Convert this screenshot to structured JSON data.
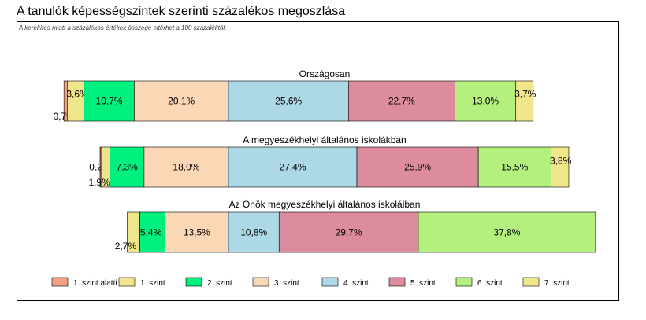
{
  "title": "A tanulók képességszintek szerinti százalékos megoszlása",
  "note": "A kerekítés miatt a százalékos értékek összege eltérhet a 100 százaléktól.",
  "colors": {
    "below1": "#F4A183",
    "level1": "#EFE58A",
    "level2": "#00F07F",
    "level3": "#FCD7B6",
    "level4": "#ADD8E6",
    "level5": "#DC8C9C",
    "level6": "#B3F07D",
    "level7": "#F2E68C"
  },
  "chart_data": {
    "type": "bar",
    "orientation": "horizontal",
    "stacked": true,
    "series": [
      {
        "name": "1. szint alatti",
        "color": "#F4A183",
        "values": [
          0.7,
          0.2,
          0
        ]
      },
      {
        "name": "1. szint",
        "color": "#EFE58A",
        "values": [
          3.6,
          1.9,
          2.7
        ]
      },
      {
        "name": "2. szint",
        "color": "#00F07F",
        "values": [
          10.7,
          7.3,
          5.4
        ]
      },
      {
        "name": "3. szint",
        "color": "#FCD7B6",
        "values": [
          20.1,
          18.0,
          13.5
        ]
      },
      {
        "name": "4. szint",
        "color": "#ADD8E6",
        "values": [
          25.6,
          27.4,
          10.8
        ]
      },
      {
        "name": "5. szint",
        "color": "#DC8C9C",
        "values": [
          22.7,
          25.9,
          29.7
        ]
      },
      {
        "name": "6. szint",
        "color": "#B3F07D",
        "values": [
          13.0,
          15.5,
          37.8
        ]
      },
      {
        "name": "7. szint",
        "color": "#F2E68C",
        "values": [
          3.7,
          3.8,
          0
        ]
      }
    ],
    "categories": [
      "Országosan",
      "A megyeszékhelyi általános iskolákban",
      "Az Önök megyeszékhelyi általános iskoláiban"
    ],
    "bars": [
      {
        "label": "Országosan",
        "segments": [
          {
            "level": 0,
            "value": 0.7,
            "label": "0,7%"
          },
          {
            "level": 1,
            "value": 3.6,
            "label": "3,6%"
          },
          {
            "level": 2,
            "value": 10.7,
            "label": "10,7%"
          },
          {
            "level": 3,
            "value": 20.1,
            "label": "20,1%"
          },
          {
            "level": 4,
            "value": 25.6,
            "label": "25,6%"
          },
          {
            "level": 5,
            "value": 22.7,
            "label": "22,7%"
          },
          {
            "level": 6,
            "value": 13.0,
            "label": "13,0%"
          },
          {
            "level": 7,
            "value": 3.7,
            "label": "3,7%"
          }
        ]
      },
      {
        "label": "A megyeszékhelyi általános iskolákban",
        "segments": [
          {
            "level": 0,
            "value": 0.2,
            "label": "0,2%"
          },
          {
            "level": 1,
            "value": 1.9,
            "label": "1,9%"
          },
          {
            "level": 2,
            "value": 7.3,
            "label": "7,3%"
          },
          {
            "level": 3,
            "value": 18.0,
            "label": "18,0%"
          },
          {
            "level": 4,
            "value": 27.4,
            "label": "27,4%"
          },
          {
            "level": 5,
            "value": 25.9,
            "label": "25,9%"
          },
          {
            "level": 6,
            "value": 15.5,
            "label": "15,5%"
          },
          {
            "level": 7,
            "value": 3.8,
            "label": "3,8%"
          }
        ]
      },
      {
        "label": "Az Önök megyeszékhelyi általános iskoláiban",
        "segments": [
          {
            "level": 1,
            "value": 2.7,
            "label": "2,7%"
          },
          {
            "level": 2,
            "value": 5.4,
            "label": "5,4%"
          },
          {
            "level": 3,
            "value": 13.5,
            "label": "13,5%"
          },
          {
            "level": 4,
            "value": 10.8,
            "label": "10,8%"
          },
          {
            "level": 5,
            "value": 29.7,
            "label": "29,7%"
          },
          {
            "level": 6,
            "value": 37.8,
            "label": "37,8%"
          }
        ]
      }
    ],
    "legend": {
      "position": "bottom",
      "entries": [
        "1. szint alatti",
        "1. szint",
        "2. szint",
        "3. szint",
        "4. szint",
        "5. szint",
        "6. szint",
        "7. szint"
      ]
    }
  }
}
